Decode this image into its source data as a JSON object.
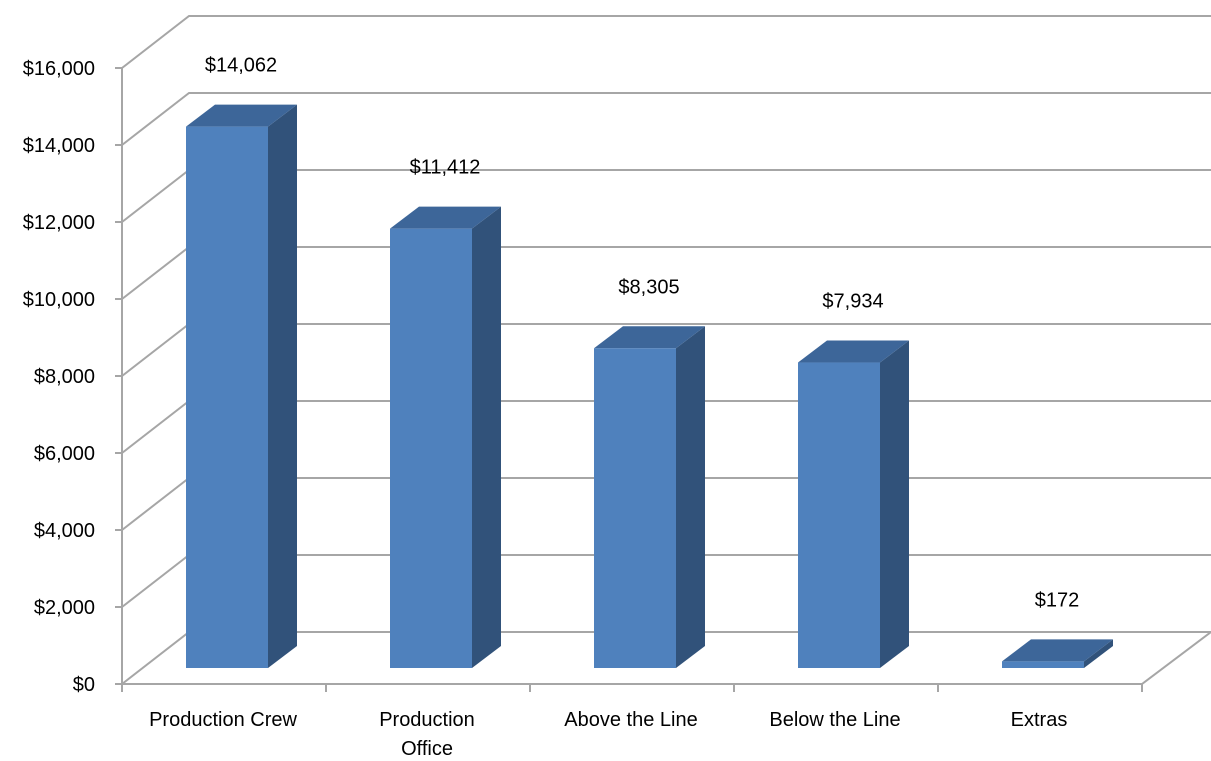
{
  "chart_data": {
    "type": "bar",
    "categories": [
      "Production Crew",
      "Production Office",
      "Above the Line",
      "Below the Line",
      "Extras"
    ],
    "category_lines": [
      [
        "Production Crew"
      ],
      [
        "Production",
        "Office"
      ],
      [
        "Above the Line"
      ],
      [
        "Below the Line"
      ],
      [
        "Extras"
      ]
    ],
    "values": [
      14062,
      11412,
      8305,
      7934,
      172
    ],
    "value_labels": [
      "$14,062",
      "$11,412",
      "$8,305",
      "$7,934",
      "$172"
    ],
    "y_ticks": [
      0,
      2000,
      4000,
      6000,
      8000,
      10000,
      12000,
      14000,
      16000
    ],
    "y_tick_labels": [
      "$0",
      "$2,000",
      "$4,000",
      "$6,000",
      "$8,000",
      "$10,000",
      "$12,000",
      "$14,000",
      "$16,000"
    ],
    "ylim": [
      0,
      16000
    ],
    "title": "",
    "xlabel": "",
    "ylabel": "",
    "grid": true,
    "legend": "none",
    "style": "3d-column",
    "colors": {
      "bar_front": "#4f81bd",
      "bar_side": "#31527a",
      "bar_top": "#3d6699",
      "grid": "#a6a6a6"
    }
  }
}
